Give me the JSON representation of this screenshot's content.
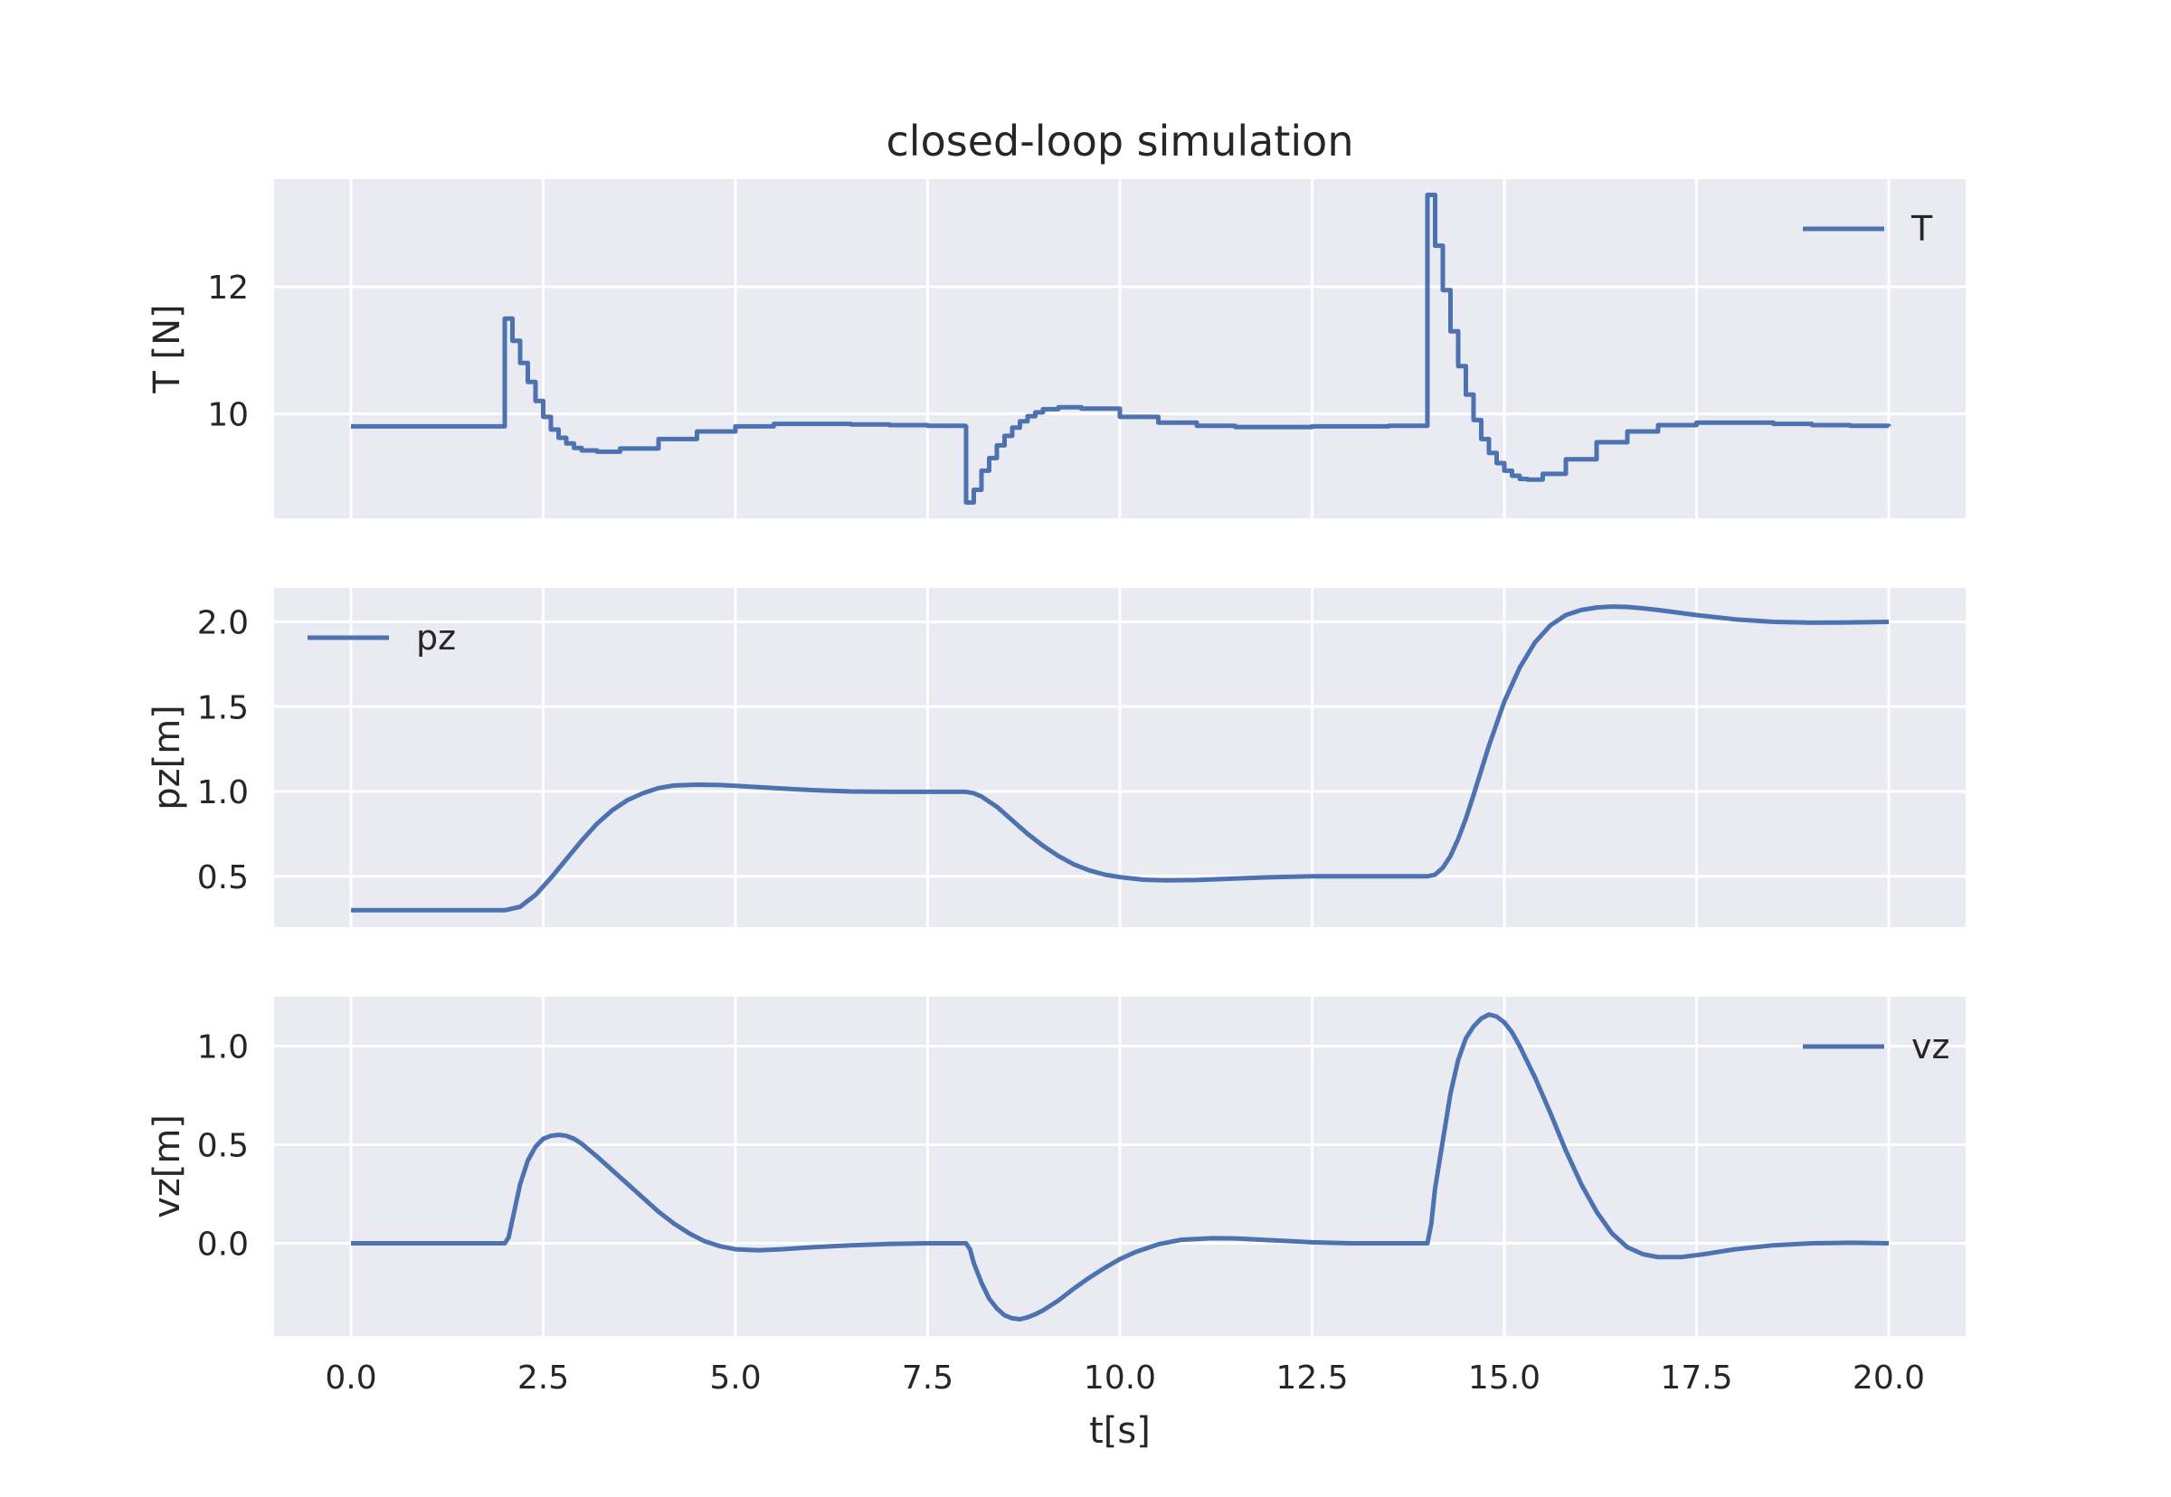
{
  "colors": {
    "figure_bg": "#ffffff",
    "axes_bg": "#eaeaf2",
    "grid": "#ffffff",
    "series": "#4c72b0",
    "text": "#262626"
  },
  "chart_data": {
    "type": "line",
    "title": "closed-loop simulation",
    "xlabel": "t[s]",
    "xlim": [
      -1.0,
      21.0
    ],
    "xticks": [
      0.0,
      2.5,
      5.0,
      7.5,
      10.0,
      12.5,
      15.0,
      17.5,
      20.0
    ],
    "xtick_labels": [
      "0.0",
      "2.5",
      "5.0",
      "7.5",
      "10.0",
      "12.5",
      "15.0",
      "17.5",
      "20.0"
    ],
    "grid": true,
    "panels": [
      {
        "ylabel": "T [N]",
        "ylim": [
          8.35,
          13.7
        ],
        "yticks": [
          10,
          12
        ],
        "ytick_labels": [
          "10",
          "12"
        ],
        "legend": "top-right",
        "series": [
          {
            "name": "T",
            "step": true,
            "x": [
              0,
              1.95,
              2.0,
              2.1,
              2.2,
              2.3,
              2.4,
              2.5,
              2.6,
              2.7,
              2.8,
              2.9,
              3.0,
              3.2,
              3.5,
              4.0,
              4.5,
              5.0,
              5.5,
              6.0,
              6.5,
              7.0,
              7.5,
              7.99,
              8.0,
              8.1,
              8.2,
              8.3,
              8.4,
              8.5,
              8.6,
              8.7,
              8.8,
              8.9,
              9.0,
              9.2,
              9.5,
              10.0,
              10.5,
              11.0,
              11.5,
              12.0,
              12.5,
              13.0,
              13.5,
              13.99,
              14.0,
              14.1,
              14.2,
              14.3,
              14.4,
              14.5,
              14.6,
              14.7,
              14.8,
              14.9,
              15.0,
              15.1,
              15.2,
              15.3,
              15.5,
              15.8,
              16.2,
              16.6,
              17.0,
              17.5,
              18.0,
              18.5,
              19.0,
              19.5,
              20.0
            ],
            "y": [
              9.8,
              9.8,
              11.5,
              11.15,
              10.8,
              10.5,
              10.2,
              9.95,
              9.75,
              9.62,
              9.53,
              9.46,
              9.42,
              9.4,
              9.45,
              9.6,
              9.72,
              9.8,
              9.84,
              9.84,
              9.83,
              9.82,
              9.81,
              9.8,
              8.6,
              8.8,
              9.1,
              9.3,
              9.5,
              9.65,
              9.78,
              9.88,
              9.96,
              10.02,
              10.07,
              10.1,
              10.08,
              9.95,
              9.86,
              9.81,
              9.79,
              9.79,
              9.8,
              9.8,
              9.81,
              9.81,
              13.45,
              12.65,
              11.95,
              11.3,
              10.75,
              10.3,
              9.9,
              9.6,
              9.38,
              9.22,
              9.1,
              9.02,
              8.97,
              8.96,
              9.05,
              9.28,
              9.55,
              9.72,
              9.82,
              9.86,
              9.86,
              9.84,
              9.82,
              9.81,
              9.8
            ]
          }
        ]
      },
      {
        "ylabel": "pz[m]",
        "ylim": [
          0.2,
          2.2
        ],
        "yticks": [
          0.5,
          1.0,
          1.5,
          2.0
        ],
        "ytick_labels": [
          "0.5",
          "1.0",
          "1.5",
          "2.0"
        ],
        "legend": "top-left",
        "series": [
          {
            "name": "pz",
            "step": false,
            "x": [
              0,
              1.0,
              2.0,
              2.2,
              2.4,
              2.6,
              2.8,
              3.0,
              3.2,
              3.4,
              3.6,
              3.8,
              4.0,
              4.2,
              4.5,
              4.8,
              5.0,
              5.5,
              6.0,
              6.5,
              7.0,
              7.5,
              8.0,
              8.1,
              8.2,
              8.4,
              8.6,
              8.8,
              9.0,
              9.2,
              9.4,
              9.6,
              9.8,
              10.0,
              10.3,
              10.6,
              11.0,
              11.5,
              12.0,
              12.5,
              13.0,
              13.5,
              14.0,
              14.1,
              14.2,
              14.3,
              14.4,
              14.5,
              14.6,
              14.8,
              15.0,
              15.2,
              15.4,
              15.6,
              15.8,
              16.0,
              16.2,
              16.4,
              16.6,
              16.8,
              17.0,
              17.5,
              18.0,
              18.5,
              19.0,
              19.5,
              20.0
            ],
            "y": [
              0.3,
              0.3,
              0.3,
              0.32,
              0.39,
              0.49,
              0.6,
              0.71,
              0.81,
              0.89,
              0.95,
              0.99,
              1.02,
              1.035,
              1.04,
              1.038,
              1.033,
              1.02,
              1.008,
              1.0,
              0.998,
              0.998,
              0.998,
              0.99,
              0.97,
              0.91,
              0.83,
              0.75,
              0.68,
              0.62,
              0.57,
              0.535,
              0.51,
              0.495,
              0.48,
              0.476,
              0.478,
              0.487,
              0.495,
              0.5,
              0.5,
              0.5,
              0.5,
              0.51,
              0.55,
              0.62,
              0.72,
              0.84,
              0.98,
              1.27,
              1.53,
              1.73,
              1.88,
              1.98,
              2.04,
              2.07,
              2.085,
              2.09,
              2.088,
              2.08,
              2.07,
              2.04,
              2.015,
              2.0,
              1.995,
              1.997,
              2.0
            ]
          }
        ]
      },
      {
        "ylabel": "vz[m]",
        "ylim": [
          -0.47,
          1.25
        ],
        "yticks": [
          0.0,
          0.5,
          1.0
        ],
        "ytick_labels": [
          "0.0",
          "0.5",
          "1.0"
        ],
        "legend": "top-right",
        "series": [
          {
            "name": "vz",
            "step": false,
            "x": [
              0,
              1.0,
              2.0,
              2.05,
              2.1,
              2.2,
              2.3,
              2.4,
              2.5,
              2.6,
              2.7,
              2.8,
              2.9,
              3.0,
              3.2,
              3.4,
              3.6,
              3.8,
              4.0,
              4.2,
              4.4,
              4.6,
              4.8,
              5.0,
              5.3,
              5.6,
              6.0,
              6.5,
              7.0,
              7.5,
              8.0,
              8.05,
              8.1,
              8.2,
              8.3,
              8.4,
              8.5,
              8.6,
              8.7,
              8.8,
              8.9,
              9.0,
              9.2,
              9.4,
              9.6,
              9.8,
              10.0,
              10.2,
              10.5,
              10.8,
              11.2,
              11.5,
              12.0,
              12.5,
              13.0,
              13.5,
              14.0,
              14.05,
              14.1,
              14.2,
              14.3,
              14.4,
              14.5,
              14.6,
              14.7,
              14.8,
              14.9,
              15.0,
              15.1,
              15.2,
              15.4,
              15.6,
              15.8,
              16.0,
              16.2,
              16.4,
              16.6,
              16.8,
              17.0,
              17.3,
              17.6,
              18.0,
              18.5,
              19.0,
              19.5,
              20.0
            ],
            "y": [
              0.0,
              0.0,
              0.0,
              0.03,
              0.12,
              0.3,
              0.42,
              0.49,
              0.53,
              0.545,
              0.55,
              0.545,
              0.53,
              0.505,
              0.44,
              0.37,
              0.3,
              0.23,
              0.16,
              0.1,
              0.05,
              0.01,
              -0.015,
              -0.03,
              -0.035,
              -0.03,
              -0.02,
              -0.01,
              -0.003,
              0.0,
              0.0,
              -0.03,
              -0.1,
              -0.2,
              -0.28,
              -0.33,
              -0.365,
              -0.38,
              -0.385,
              -0.375,
              -0.36,
              -0.34,
              -0.29,
              -0.23,
              -0.175,
              -0.125,
              -0.08,
              -0.045,
              -0.005,
              0.018,
              0.026,
              0.025,
              0.015,
              0.005,
              0.0,
              0.0,
              0.0,
              0.1,
              0.28,
              0.52,
              0.76,
              0.93,
              1.04,
              1.1,
              1.14,
              1.16,
              1.15,
              1.12,
              1.07,
              1.0,
              0.84,
              0.66,
              0.47,
              0.3,
              0.16,
              0.05,
              -0.02,
              -0.055,
              -0.07,
              -0.07,
              -0.055,
              -0.03,
              -0.01,
              0.0,
              0.003,
              0.0
            ]
          }
        ]
      }
    ]
  }
}
